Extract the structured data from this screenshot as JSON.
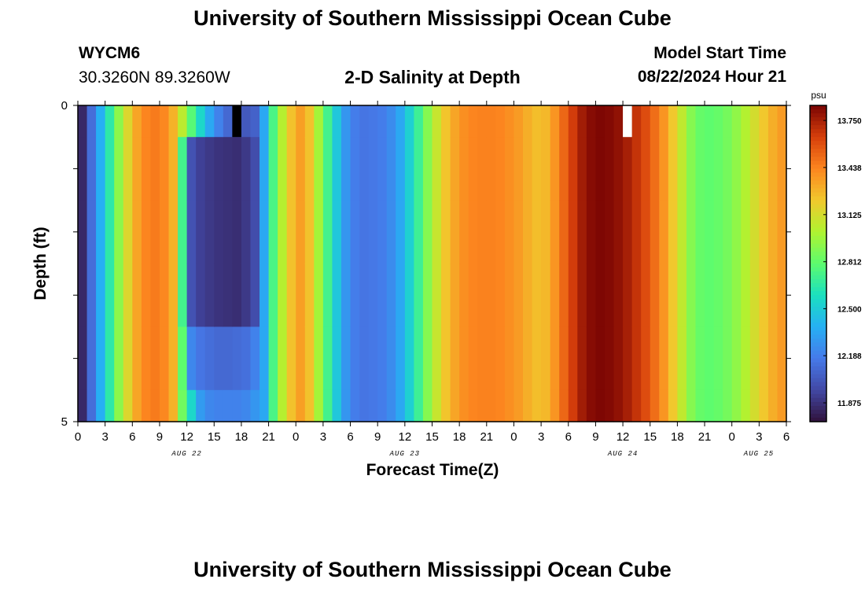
{
  "header": {
    "title": "University of Southern Mississippi Ocean Cube",
    "station": "WYCM6",
    "location": "30.3260N  89.3260W",
    "plot_title": "2-D Salinity at Depth",
    "model_start_label": "Model Start Time",
    "model_start_value": "08/22/2024 Hour 21"
  },
  "footer": {
    "title": "University of Southern Mississippi Ocean Cube"
  },
  "chart_data": {
    "type": "heatmap",
    "title": "2-D Salinity at Depth",
    "xlabel": "Forecast Time(Z)",
    "ylabel": "Depth (ft)",
    "ylim": [
      0,
      5
    ],
    "y_ticks": [
      "0",
      "5"
    ],
    "x_tick_labels": [
      "0",
      "3",
      "6",
      "9",
      "12",
      "15",
      "18",
      "21",
      "0",
      "3",
      "6",
      "9",
      "12",
      "15",
      "18",
      "21",
      "0",
      "3",
      "6",
      "9",
      "12",
      "15",
      "18",
      "21",
      "0",
      "3",
      "6"
    ],
    "day_labels": [
      "AUG 22",
      "AUG 23",
      "AUG 24",
      "AUG 25"
    ],
    "start_hour": 0,
    "end_hour": 78,
    "colorbar": {
      "unit": "psu",
      "min": 11.75,
      "max": 13.85,
      "tick_labels": [
        "11.875",
        "12.188",
        "12.500",
        "12.812",
        "13.125",
        "13.438",
        "13.750"
      ],
      "tick_values": [
        11.875,
        12.188,
        12.5,
        12.812,
        13.125,
        13.438,
        13.75
      ]
    },
    "layer_depths_ft": [
      0,
      0.5,
      1.5,
      2.5,
      3.5,
      4.5
    ],
    "hourly_salinity_psu": [
      11.84,
      12.12,
      12.38,
      12.65,
      12.92,
      13.15,
      13.33,
      13.43,
      13.46,
      13.42,
      13.29,
      13.05,
      12.78,
      12.55,
      12.35,
      12.2,
      12.1,
      12.04,
      12.03,
      12.07,
      12.35,
      12.74,
      13.03,
      13.24,
      13.35,
      13.24,
      12.98,
      12.72,
      12.48,
      12.28,
      12.18,
      12.15,
      12.16,
      12.18,
      12.24,
      12.35,
      12.52,
      12.7,
      12.9,
      13.08,
      13.23,
      13.33,
      13.4,
      13.43,
      13.44,
      13.44,
      13.43,
      13.4,
      13.36,
      13.3,
      13.25,
      13.27,
      13.38,
      13.52,
      13.65,
      13.76,
      13.82,
      13.84,
      13.83,
      13.8,
      13.75,
      13.68,
      13.6,
      13.5,
      13.38,
      13.22,
      13.06,
      12.9,
      12.82,
      12.8,
      12.82,
      12.86,
      12.93,
      13.02,
      13.12,
      13.22,
      13.3,
      13.36
    ],
    "deep_overrides": {
      "hours": [
        11,
        12,
        13,
        14,
        15,
        16,
        17,
        18,
        19
      ],
      "layers_1_3": [
        12.72,
        12.0,
        11.93,
        11.9,
        11.88,
        11.87,
        11.86,
        11.9,
        11.98
      ],
      "layers_4_5": [
        12.8,
        12.22,
        12.15,
        12.12,
        12.1,
        12.1,
        12.11,
        12.13,
        12.2
      ],
      "layer_5_extra": [
        12.85,
        12.55,
        12.3,
        12.22,
        12.2,
        12.2,
        12.2,
        12.22,
        12.28
      ]
    },
    "missing_markers": [
      {
        "hour": 17,
        "depth_to_ft": 0.5,
        "color": "#000000"
      },
      {
        "hour": 60,
        "depth_to_ft": 0.5,
        "color": "#ffffff"
      }
    ]
  }
}
